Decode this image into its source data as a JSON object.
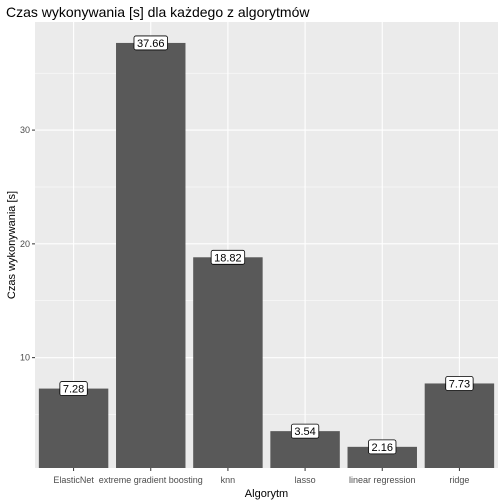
{
  "chart_data": {
    "type": "bar",
    "title": "Czas wykonywania [s] dla każdego z algorytmów",
    "xlabel": "Algorytm",
    "ylabel": "Czas wykonywania [s]",
    "categories": [
      "ElasticNet",
      "extreme gradient boosting",
      "knn",
      "lasso",
      "linear regression",
      "ridge"
    ],
    "values": [
      7.28,
      37.66,
      18.82,
      3.54,
      2.16,
      7.73
    ],
    "data_labels": [
      "7.28",
      "37.66",
      "18.82",
      "3.54",
      "2.16",
      "7.73"
    ],
    "yticks": [
      10,
      20,
      30
    ],
    "ytick_labels": [
      "10",
      "20",
      "30"
    ],
    "ylim": [
      0.3,
      39.5
    ],
    "grid": true,
    "legend": "none",
    "colors": {
      "panel": "#ebebeb",
      "grid_major": "#ffffff",
      "bar": "#595959",
      "label_fill": "#ffffff",
      "label_border": "#000000"
    }
  }
}
